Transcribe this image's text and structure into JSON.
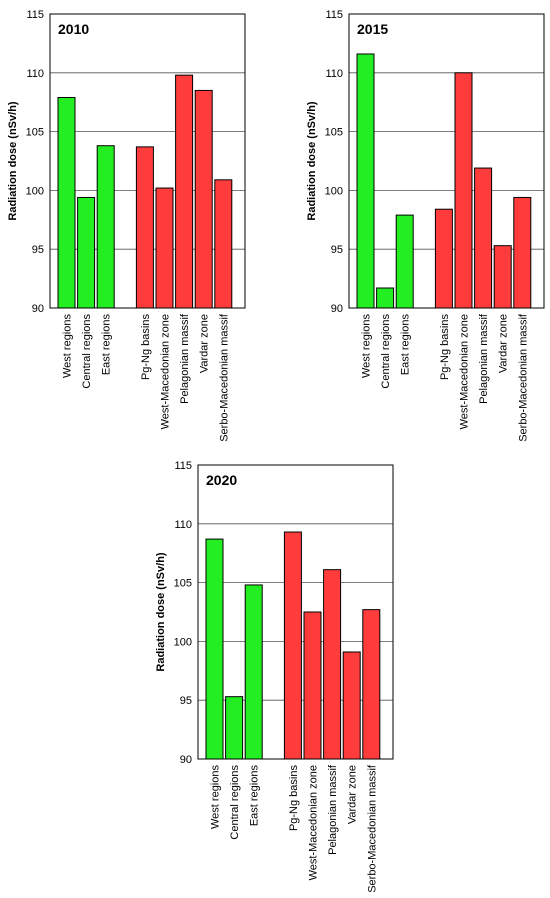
{
  "colors": {
    "green": "#22ee22",
    "red": "#ff3c3c",
    "grid": "#555555",
    "frame": "#000000"
  },
  "chart_data": [
    {
      "type": "bar",
      "title": "2010",
      "ylabel": "Radiation dose (nSv/h)",
      "ylim": [
        90,
        115
      ],
      "yticks": [
        90,
        95,
        100,
        105,
        110,
        115
      ],
      "grid": true,
      "categories": [
        "West regions",
        "Central regions",
        "East regions",
        "Pg-Ng basins",
        "West-Macedonian zone",
        "Pelagonian massif",
        "Vardar zone",
        "Serbo-Macedonian massif"
      ],
      "groups": [
        "green",
        "green",
        "green",
        "red",
        "red",
        "red",
        "red",
        "red"
      ],
      "values": [
        107.9,
        99.4,
        103.8,
        103.7,
        100.2,
        109.8,
        108.5,
        100.9
      ]
    },
    {
      "type": "bar",
      "title": "2015",
      "ylabel": "Radiation dose (nSv/h)",
      "ylim": [
        90,
        115
      ],
      "yticks": [
        90,
        95,
        100,
        105,
        110,
        115
      ],
      "grid": true,
      "categories": [
        "West regions",
        "Central regions",
        "East regions",
        "Pg-Ng basins",
        "West-Macedonian zone",
        "Pelagonian massif",
        "Vardar zone",
        "Serbo-Macedonian massif"
      ],
      "groups": [
        "green",
        "green",
        "green",
        "red",
        "red",
        "red",
        "red",
        "red"
      ],
      "values": [
        111.6,
        91.7,
        97.9,
        98.4,
        110.0,
        101.9,
        95.3,
        99.4
      ]
    },
    {
      "type": "bar",
      "title": "2020",
      "ylabel": "Radiation dose (nSv/h)",
      "ylim": [
        90,
        115
      ],
      "yticks": [
        90,
        95,
        100,
        105,
        110,
        115
      ],
      "grid": true,
      "categories": [
        "West regions",
        "Central regions",
        "East regions",
        "Pg-Ng basins",
        "West-Macedonian zone",
        "Pelagonian massif",
        "Vardar zone",
        "Serbo-Macedonian massif"
      ],
      "groups": [
        "green",
        "green",
        "green",
        "red",
        "red",
        "red",
        "red",
        "red"
      ],
      "values": [
        108.7,
        95.3,
        104.8,
        109.3,
        102.5,
        106.1,
        99.1,
        102.7
      ]
    }
  ]
}
